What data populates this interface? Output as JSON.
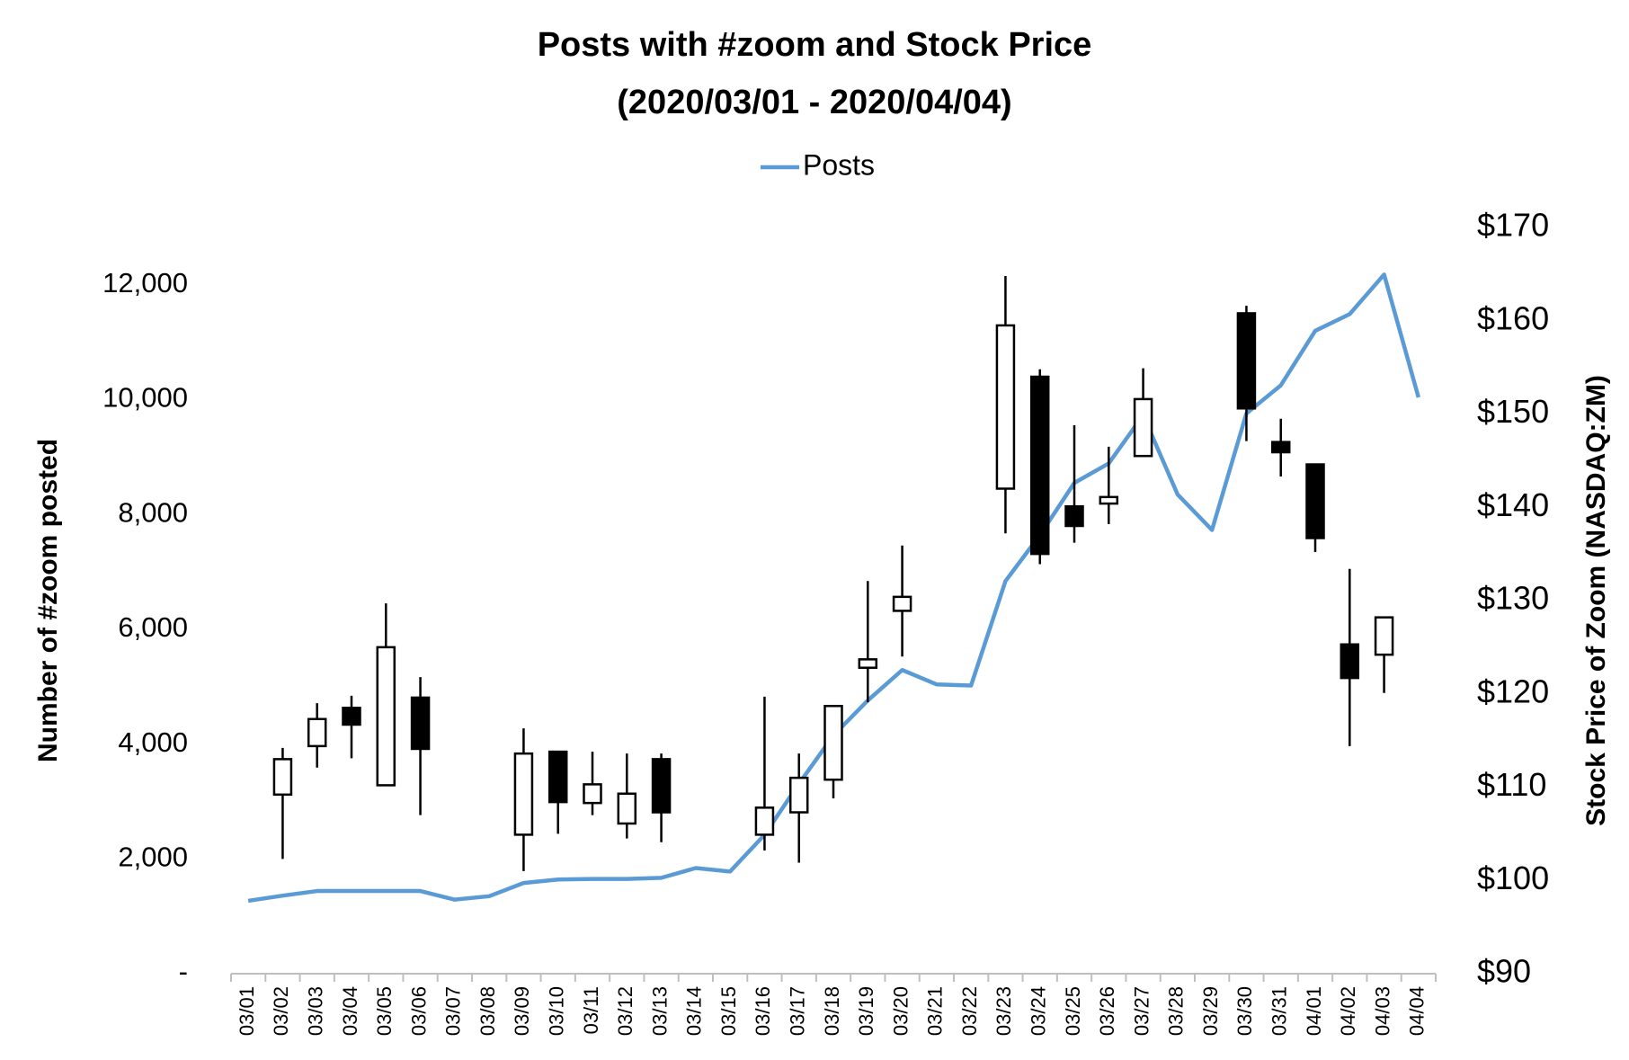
{
  "chart_data": {
    "type": "line",
    "title": [
      "Posts with #zoom and Stock Price",
      "(2020/03/01 - 2020/04/04)"
    ],
    "ylabel": "Number of #zoom posted",
    "y2label": "Stock Price of Zoom (NASDAQ:ZM)",
    "categories": [
      "03/01",
      "03/02",
      "03/03",
      "03/04",
      "03/05",
      "03/06",
      "03/07",
      "03/08",
      "03/09",
      "03/10",
      "03/11",
      "03/12",
      "03/13",
      "03/14",
      "03/15",
      "03/16",
      "03/17",
      "03/18",
      "03/19",
      "03/20",
      "03/21",
      "03/22",
      "03/23",
      "03/24",
      "03/25",
      "03/26",
      "03/27",
      "03/28",
      "03/29",
      "03/30",
      "03/31",
      "04/01",
      "04/02",
      "04/03",
      "04/04"
    ],
    "ylim": [
      0,
      13000
    ],
    "yticks": [
      {
        "value": 0,
        "label": "-"
      },
      {
        "value": 2000,
        "label": "2,000"
      },
      {
        "value": 4000,
        "label": "4,000"
      },
      {
        "value": 6000,
        "label": "6,000"
      },
      {
        "value": 8000,
        "label": "8,000"
      },
      {
        "value": 10000,
        "label": "10,000"
      },
      {
        "value": 12000,
        "label": "12,000"
      }
    ],
    "y2lim": [
      90,
      170
    ],
    "y2ticks": [
      {
        "value": 90,
        "label": "$90"
      },
      {
        "value": 100,
        "label": "$100"
      },
      {
        "value": 110,
        "label": "$110"
      },
      {
        "value": 120,
        "label": "$120"
      },
      {
        "value": 130,
        "label": "$130"
      },
      {
        "value": 140,
        "label": "$140"
      },
      {
        "value": 150,
        "label": "$150"
      },
      {
        "value": 160,
        "label": "$160"
      },
      {
        "value": 170,
        "label": "$170"
      }
    ],
    "grid": false,
    "legend": "top",
    "series": [
      {
        "name": "Posts",
        "color": "#5b9bd5",
        "values": [
          1270,
          1360,
          1440,
          1440,
          1440,
          1440,
          1290,
          1350,
          1580,
          1640,
          1650,
          1650,
          1670,
          1840,
          1780,
          2420,
          3310,
          4150,
          4760,
          5290,
          5040,
          5020,
          6840,
          7640,
          8550,
          8890,
          9730,
          8350,
          7730,
          9760,
          10250,
          11200,
          11490,
          12180,
          10040
        ]
      },
      {
        "type": "candlestick",
        "axis": "y2",
        "up_color": "#ffffff",
        "down_color": "#000000",
        "edge_color": "#000000",
        "open": [
          null,
          109.2,
          114.4,
          118.5,
          110.2,
          119.6,
          null,
          null,
          104.9,
          113.8,
          108.3,
          106.1,
          113.0,
          null,
          null,
          104.9,
          107.3,
          110.8,
          122.8,
          128.9,
          null,
          null,
          142.0,
          154.0,
          140.1,
          140.4,
          145.5,
          null,
          null,
          160.8,
          147.0,
          144.6,
          125.3,
          124.2,
          null
        ],
        "high": [
          null,
          114.2,
          119.0,
          119.8,
          129.7,
          121.8,
          null,
          null,
          116.3,
          113.8,
          113.8,
          113.6,
          113.6,
          null,
          null,
          119.7,
          113.6,
          118.7,
          132.1,
          135.9,
          null,
          null,
          164.8,
          154.8,
          148.8,
          146.5,
          154.9,
          null,
          null,
          161.6,
          149.5,
          144.6,
          133.4,
          128.2,
          null
        ],
        "low": [
          null,
          102.3,
          112.1,
          113.1,
          110.2,
          107.0,
          null,
          null,
          101.0,
          105.0,
          107.0,
          104.5,
          104.1,
          null,
          null,
          103.2,
          101.9,
          108.8,
          119.1,
          124.0,
          null,
          null,
          137.2,
          133.9,
          136.2,
          138.2,
          145.5,
          null,
          null,
          147.1,
          143.3,
          135.2,
          114.4,
          120.1,
          null
        ],
        "close": [
          null,
          113.0,
          117.3,
          116.7,
          125.0,
          114.1,
          null,
          null,
          113.6,
          108.4,
          110.3,
          109.3,
          107.3,
          null,
          null,
          107.8,
          111.0,
          118.7,
          123.7,
          130.4,
          null,
          null,
          159.5,
          135.0,
          138.0,
          141.1,
          151.6,
          null,
          null,
          150.6,
          145.9,
          136.7,
          121.7,
          128.2,
          null
        ]
      }
    ]
  }
}
